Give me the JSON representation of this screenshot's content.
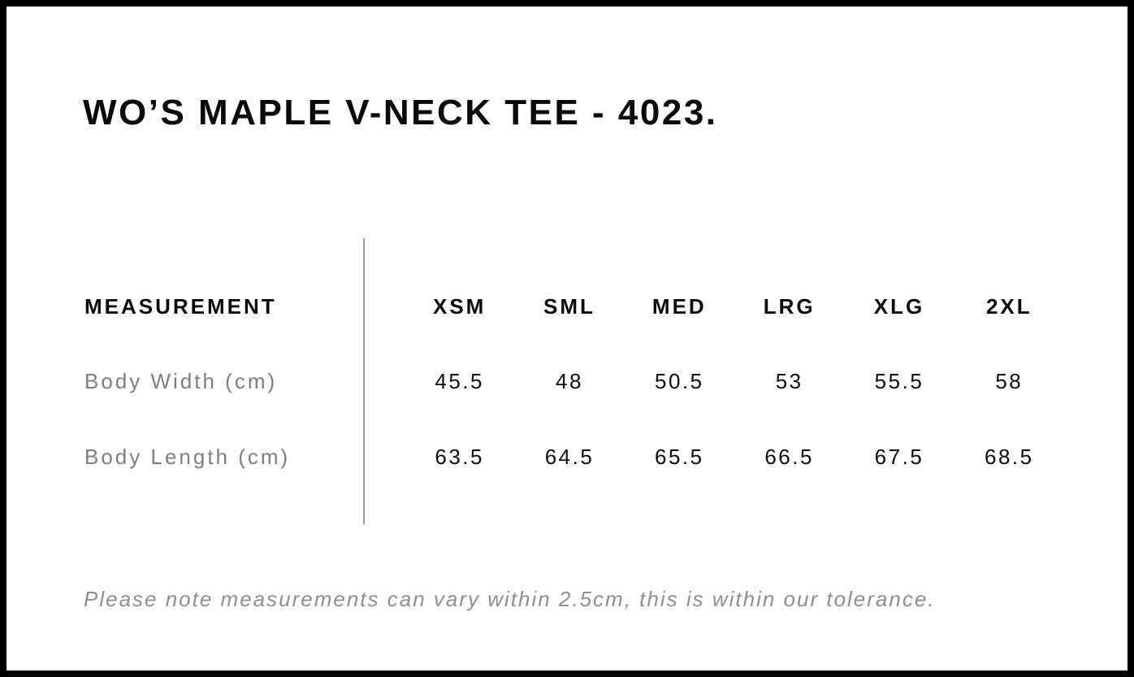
{
  "page": {
    "title": "WO’S MAPLE V-NECK TEE - 4023."
  },
  "size_chart": {
    "measurement_header": "MEASUREMENT",
    "sizes": [
      "XSM",
      "SML",
      "MED",
      "LRG",
      "XLG",
      "2XL"
    ],
    "rows": [
      {
        "label": "Body Width (cm)",
        "values": [
          "45.5",
          "48",
          "50.5",
          "53",
          "55.5",
          "58"
        ]
      },
      {
        "label": "Body Length (cm)",
        "values": [
          "63.5",
          "64.5",
          "65.5",
          "66.5",
          "67.5",
          "68.5"
        ]
      }
    ]
  },
  "note": "Please note measurements can vary within 2.5cm, this is within our tolerance.",
  "colors": {
    "frame_border": "#000000",
    "title_text": "#0a0a0a",
    "header_text": "#0a0a0a",
    "row_label_text": "#7e7e7e",
    "value_text": "#0d0d0d",
    "note_text": "#8e8e8e",
    "divider": "#9c9c9c",
    "background": "#ffffff"
  }
}
